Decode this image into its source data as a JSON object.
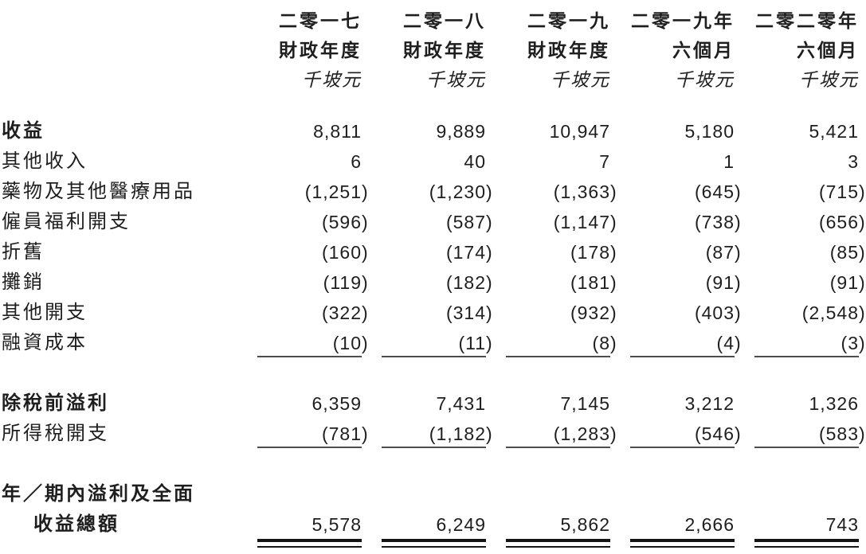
{
  "table": {
    "currency_unit": "千坡元",
    "columns": [
      {
        "year_line": "二零一七",
        "period_line": "財政年度",
        "unit": "千坡元"
      },
      {
        "year_line": "二零一八",
        "period_line": "財政年度",
        "unit": "千坡元"
      },
      {
        "year_line": "二零一九",
        "period_line": "財政年度",
        "unit": "千坡元"
      },
      {
        "year_line": "二零一九年",
        "period_line": "六個月",
        "unit": "千坡元"
      },
      {
        "year_line": "二零二零年",
        "period_line": "六個月",
        "unit": "千坡元"
      }
    ],
    "rows": [
      {
        "label": "收益",
        "bold": true,
        "values": [
          "8,811",
          "9,889",
          "10,947",
          "5,180",
          "5,421"
        ]
      },
      {
        "label": "其他收入",
        "values": [
          "6",
          "40",
          "7",
          "1",
          "3"
        ]
      },
      {
        "label": "藥物及其他醫療用品",
        "values": [
          "(1,251)",
          "(1,230)",
          "(1,363)",
          "(645)",
          "(715)"
        ]
      },
      {
        "label": "僱員福利開支",
        "values": [
          "(596)",
          "(587)",
          "(1,147)",
          "(738)",
          "(656)"
        ]
      },
      {
        "label": "折舊",
        "values": [
          "(160)",
          "(174)",
          "(178)",
          "(87)",
          "(85)"
        ]
      },
      {
        "label": "攤銷",
        "values": [
          "(119)",
          "(182)",
          "(181)",
          "(91)",
          "(91)"
        ]
      },
      {
        "label": "其他開支",
        "values": [
          "(322)",
          "(314)",
          "(932)",
          "(403)",
          "(2,548)"
        ]
      },
      {
        "label": "融資成本",
        "values": [
          "(10)",
          "(11)",
          "(8)",
          "(4)",
          "(3)"
        ],
        "underline": "single"
      },
      {
        "spacer": true
      },
      {
        "label": "除稅前溢利",
        "bold": true,
        "values": [
          "6,359",
          "7,431",
          "7,145",
          "3,212",
          "1,326"
        ]
      },
      {
        "label": "所得稅開支",
        "values": [
          "(781)",
          "(1,182)",
          "(1,283)",
          "(546)",
          "(583)"
        ],
        "underline": "single"
      },
      {
        "spacer": true
      },
      {
        "label": "年／期內溢利及全面",
        "bold": true,
        "values": [
          "",
          "",
          "",
          "",
          ""
        ]
      },
      {
        "label": "收益總額",
        "bold": true,
        "indent": true,
        "values": [
          "5,578",
          "6,249",
          "5,862",
          "2,666",
          "743"
        ],
        "underline": "double"
      }
    ]
  }
}
